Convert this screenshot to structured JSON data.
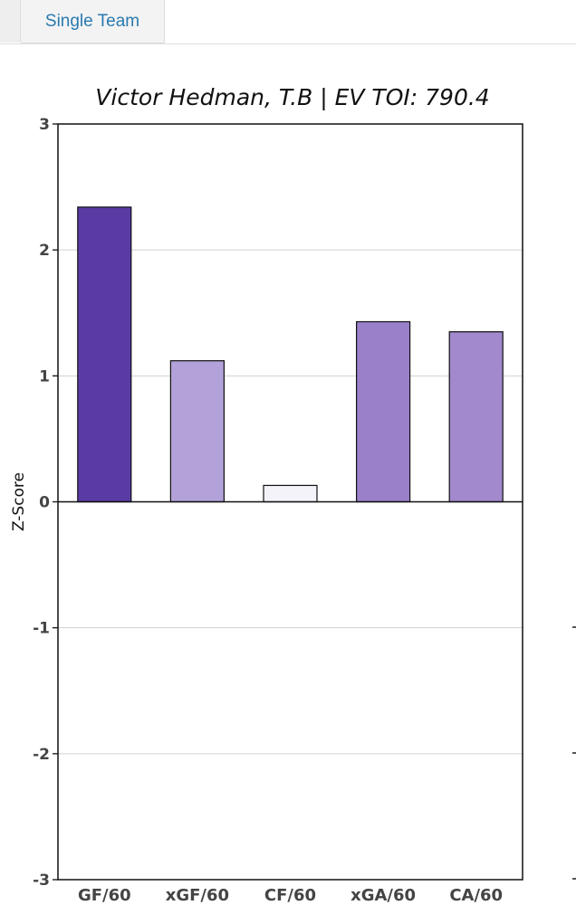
{
  "tabs": {
    "active_label": "Single Team"
  },
  "chart_data": {
    "type": "bar",
    "title": "Victor Hedman, T.B  |  EV TOI: 790.4",
    "xlabel": "",
    "ylabel": "Z-Score",
    "ylim": [
      -3,
      3
    ],
    "yticks": [
      3,
      2,
      1,
      0,
      -1,
      -2,
      -3
    ],
    "grid": true,
    "categories": [
      "GF/60",
      "xGF/60",
      "CF/60",
      "xGA/60",
      "CA/60"
    ],
    "values": [
      2.34,
      1.12,
      0.13,
      1.43,
      1.35
    ],
    "bar_colors": [
      "#5a3ba5",
      "#b3a1d9",
      "#f5f3fa",
      "#9a80c9",
      "#a288cc"
    ],
    "edge_color": "#111111",
    "grid_color": "#d0d0d0"
  }
}
